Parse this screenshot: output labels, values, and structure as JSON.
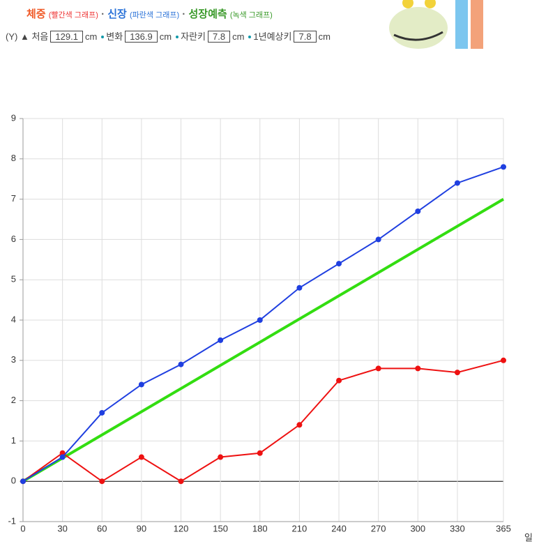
{
  "header": {
    "separator": "·",
    "y_marker": "(Y)",
    "arrow": "▲",
    "info": [
      {
        "label": "처음",
        "value": 129.1,
        "unit": "cm"
      },
      {
        "label": "변화",
        "value": 136.9,
        "unit": "cm"
      },
      {
        "label": "자란키",
        "value": 7.8,
        "unit": "cm"
      },
      {
        "label": "1년예상키",
        "value": 7.8,
        "unit": "cm"
      }
    ]
  },
  "chart_data": {
    "type": "line",
    "xlabel": "일",
    "x": [
      0,
      30,
      60,
      90,
      120,
      150,
      180,
      210,
      240,
      270,
      300,
      330,
      365
    ],
    "xlim": [
      0,
      365
    ],
    "xticks": [
      0,
      30,
      60,
      90,
      120,
      150,
      180,
      210,
      240,
      270,
      300,
      330,
      365
    ],
    "ylim": [
      -1,
      9
    ],
    "yticks": [
      -1,
      0,
      1,
      2,
      3,
      4,
      5,
      6,
      7,
      8,
      9
    ],
    "grid": true,
    "series": [
      {
        "name": "체중",
        "note": "(빨간색 그래프)",
        "color": "#ee1111",
        "markers": true,
        "values": [
          0,
          0.7,
          0,
          0.6,
          0,
          0.6,
          0.7,
          1.4,
          2.5,
          2.8,
          2.8,
          2.7,
          3.0
        ]
      },
      {
        "name": "신장",
        "note": "(파란색 그래프)",
        "color": "#1f3fe0",
        "markers": true,
        "values": [
          0,
          0.6,
          1.7,
          2.4,
          2.9,
          3.5,
          4.0,
          4.8,
          5.4,
          6.0,
          6.7,
          7.4,
          7.8
        ]
      },
      {
        "name": "성장예측",
        "note": "(녹색 그래프)",
        "color": "#33dd11",
        "markers": false,
        "x": [
          0,
          365
        ],
        "values": [
          0,
          7.0
        ]
      }
    ]
  }
}
